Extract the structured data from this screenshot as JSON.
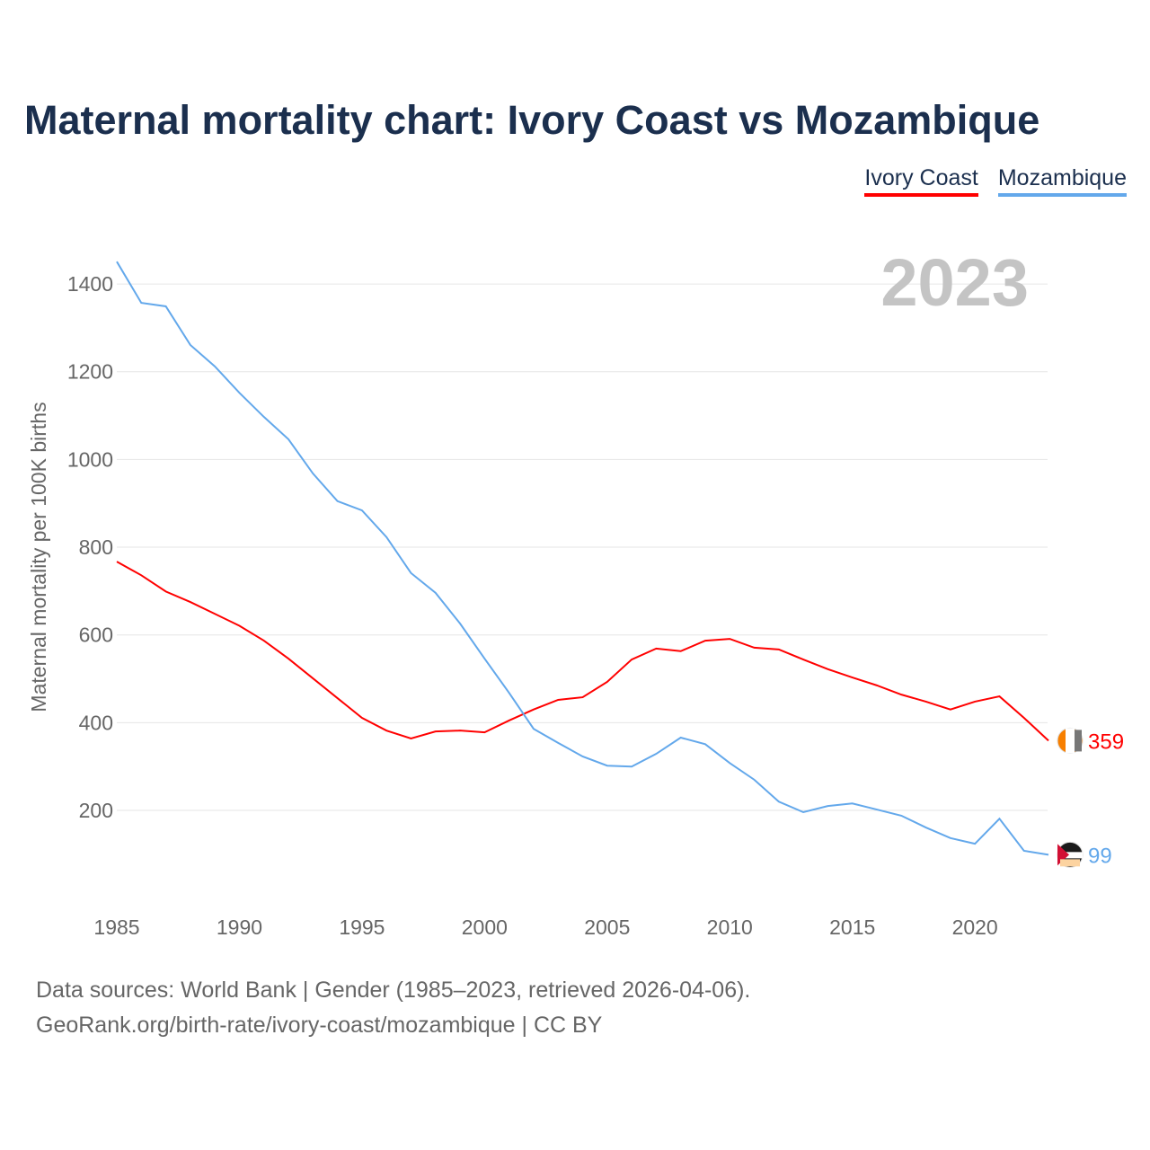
{
  "title": "Maternal mortality chart: Ivory Coast vs Mozambique",
  "footer": {
    "line1": "Data sources: World Bank | Gender (1985–2023, retrieved 2026-04-06).",
    "line2": "GeoRank.org/birth-rate/ivory-coast/mozambique | CC BY"
  },
  "chart_data": {
    "type": "line",
    "title": "Maternal mortality chart: Ivory Coast vs Mozambique",
    "ylabel": "Maternal mortality per 100K births",
    "xlabel": "",
    "year_label": "2023",
    "xlim": [
      1985,
      2023
    ],
    "ylim": [
      0,
      1450
    ],
    "xticks": [
      1985,
      1990,
      1995,
      2000,
      2005,
      2010,
      2015,
      2020
    ],
    "yticks": [
      200,
      400,
      600,
      800,
      1000,
      1200,
      1400
    ],
    "grid": true,
    "legend_position": "top-right",
    "x": [
      1985,
      1986,
      1987,
      1988,
      1989,
      1990,
      1991,
      1992,
      1993,
      1994,
      1995,
      1996,
      1997,
      1998,
      1999,
      2000,
      2001,
      2002,
      2003,
      2004,
      2005,
      2006,
      2007,
      2008,
      2009,
      2010,
      2011,
      2012,
      2013,
      2014,
      2015,
      2016,
      2017,
      2018,
      2019,
      2020,
      2021,
      2022,
      2023
    ],
    "series": [
      {
        "name": "Ivory Coast",
        "color": "#ff0000",
        "end_label": "359",
        "values": [
          767,
          736,
          699,
          675,
          648,
          621,
          587,
          546,
          501,
          456,
          411,
          382,
          364,
          380,
          382,
          378,
          405,
          430,
          452,
          458,
          493,
          544,
          569,
          563,
          587,
          591,
          571,
          567,
          544,
          522,
          503,
          485,
          464,
          448,
          430,
          448,
          460,
          411,
          359
        ]
      },
      {
        "name": "Mozambique",
        "color": "#63a8eb",
        "end_label": "99",
        "values": [
          1451,
          1357,
          1349,
          1261,
          1212,
          1152,
          1097,
          1046,
          968,
          905,
          884,
          823,
          741,
          696,
          626,
          546,
          468,
          386,
          354,
          323,
          302,
          300,
          329,
          366,
          351,
          308,
          270,
          220,
          196,
          210,
          216,
          202,
          188,
          161,
          137,
          124,
          181,
          108,
          99
        ]
      }
    ]
  }
}
